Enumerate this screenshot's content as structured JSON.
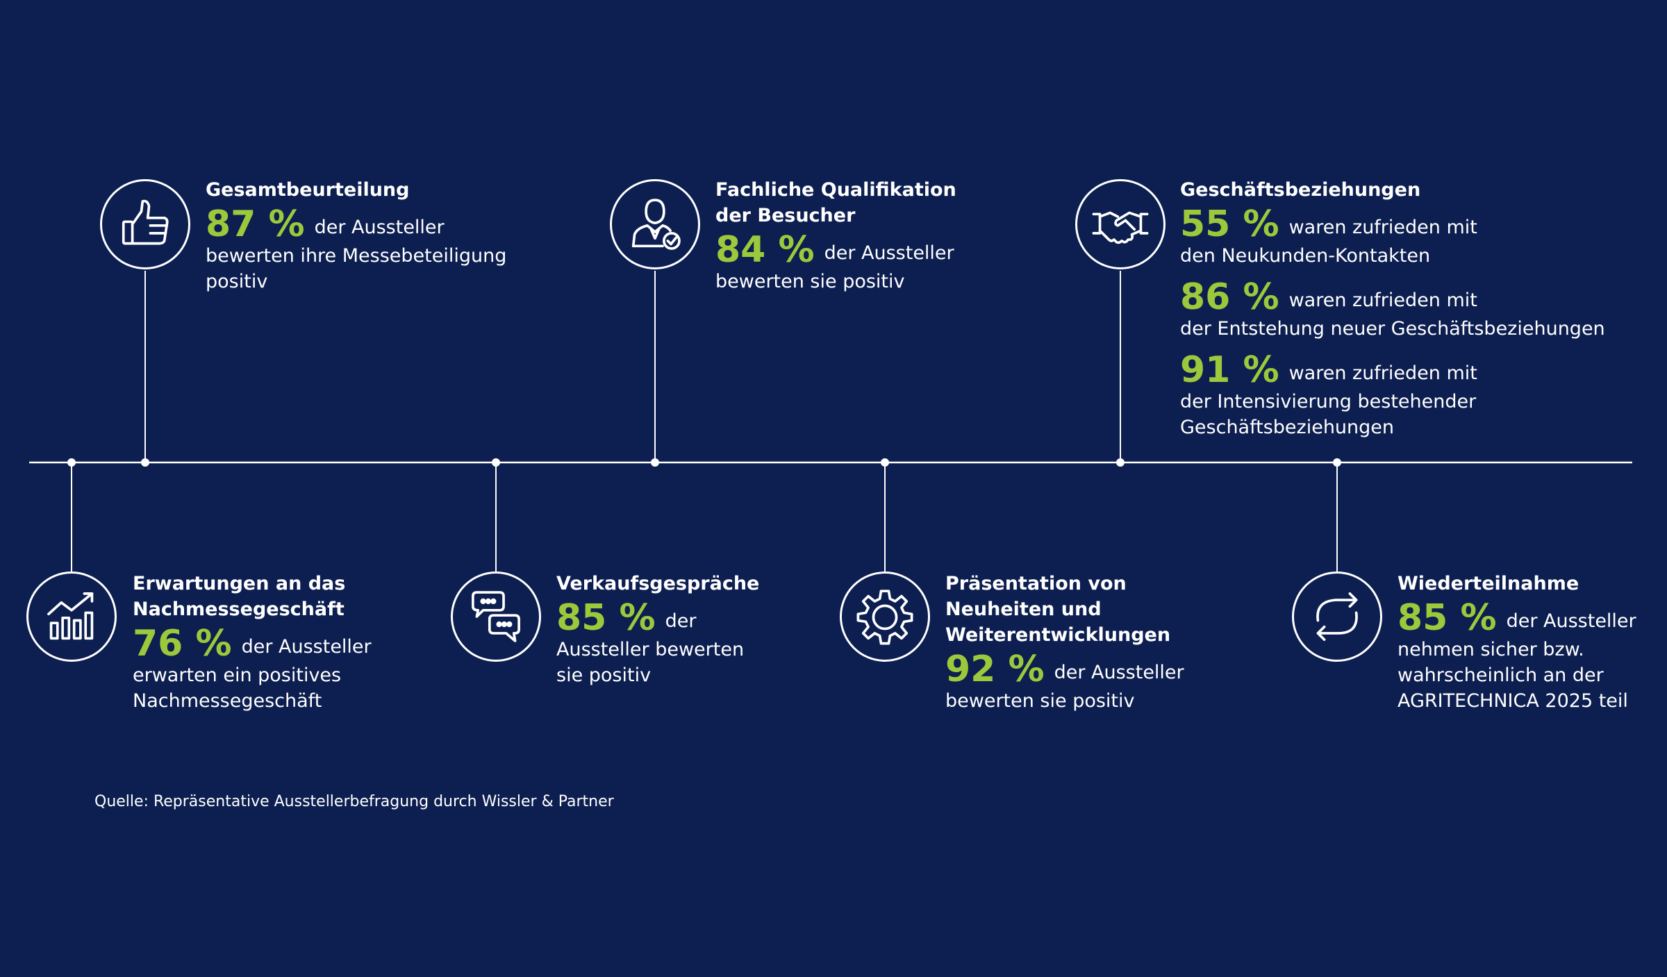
{
  "accent_color": "#9cc93b",
  "background_color": "#0d1f50",
  "items": {
    "gesamt": {
      "icon": "thumbs-up-icon",
      "title": "Gesamtbeurteilung",
      "stats": [
        {
          "value": "87 %",
          "line1": "der Aussteller",
          "rest": [
            "bewerten ihre Messebeteiligung",
            "positiv"
          ]
        }
      ]
    },
    "qualifikation": {
      "icon": "visitor-person-check-icon",
      "title_lines": [
        "Fachliche Qualifikation",
        "der Besucher"
      ],
      "stats": [
        {
          "value": "84 %",
          "line1": "der Aussteller",
          "rest": [
            "bewerten sie positiv"
          ]
        }
      ]
    },
    "geschaeft": {
      "icon": "handshake-icon",
      "title": "Geschäftsbeziehungen",
      "stats": [
        {
          "value": "55 %",
          "line1": "waren zufrieden mit",
          "rest": [
            "den Neukunden-Kontakten"
          ]
        },
        {
          "value": "86 %",
          "line1": "waren zufrieden mit",
          "rest": [
            "der Entstehung neuer Geschäftsbeziehungen"
          ]
        },
        {
          "value": "91 %",
          "line1": "waren zufrieden mit",
          "rest": [
            "der Intensivierung bestehender",
            "Geschäftsbeziehungen"
          ]
        }
      ]
    },
    "erwartungen": {
      "icon": "bar-chart-trend-icon",
      "title_lines": [
        "Erwartungen an das",
        "Nachmessegeschäft"
      ],
      "stats": [
        {
          "value": "76 %",
          "line1": "der Aussteller",
          "rest": [
            "erwarten ein positives",
            "Nachmessegeschäft"
          ]
        }
      ]
    },
    "verkauf": {
      "icon": "chat-bubbles-icon",
      "title": "Verkaufsgespräche",
      "stats": [
        {
          "value": "85 %",
          "line1": "der",
          "rest": [
            "Aussteller bewerten",
            "sie positiv"
          ]
        }
      ]
    },
    "praesentation": {
      "icon": "gear-icon",
      "title_lines": [
        "Präsentation von",
        "Neuheiten und",
        "Weiterentwicklungen"
      ],
      "stats": [
        {
          "value": "92 %",
          "line1": "der Aussteller",
          "rest": [
            "bewerten sie positiv"
          ]
        }
      ]
    },
    "wieder": {
      "icon": "refresh-arrows-icon",
      "title": "Wiederteilnahme",
      "stats": [
        {
          "value": "85 %",
          "line1": "der Aussteller",
          "rest": [
            "nehmen sicher bzw.",
            "wahrscheinlich an der",
            "AGRITECHNICA 2025 teil"
          ]
        }
      ]
    }
  },
  "source": "Quelle: Repräsentative Ausstellerbefragung durch Wissler & Partner"
}
